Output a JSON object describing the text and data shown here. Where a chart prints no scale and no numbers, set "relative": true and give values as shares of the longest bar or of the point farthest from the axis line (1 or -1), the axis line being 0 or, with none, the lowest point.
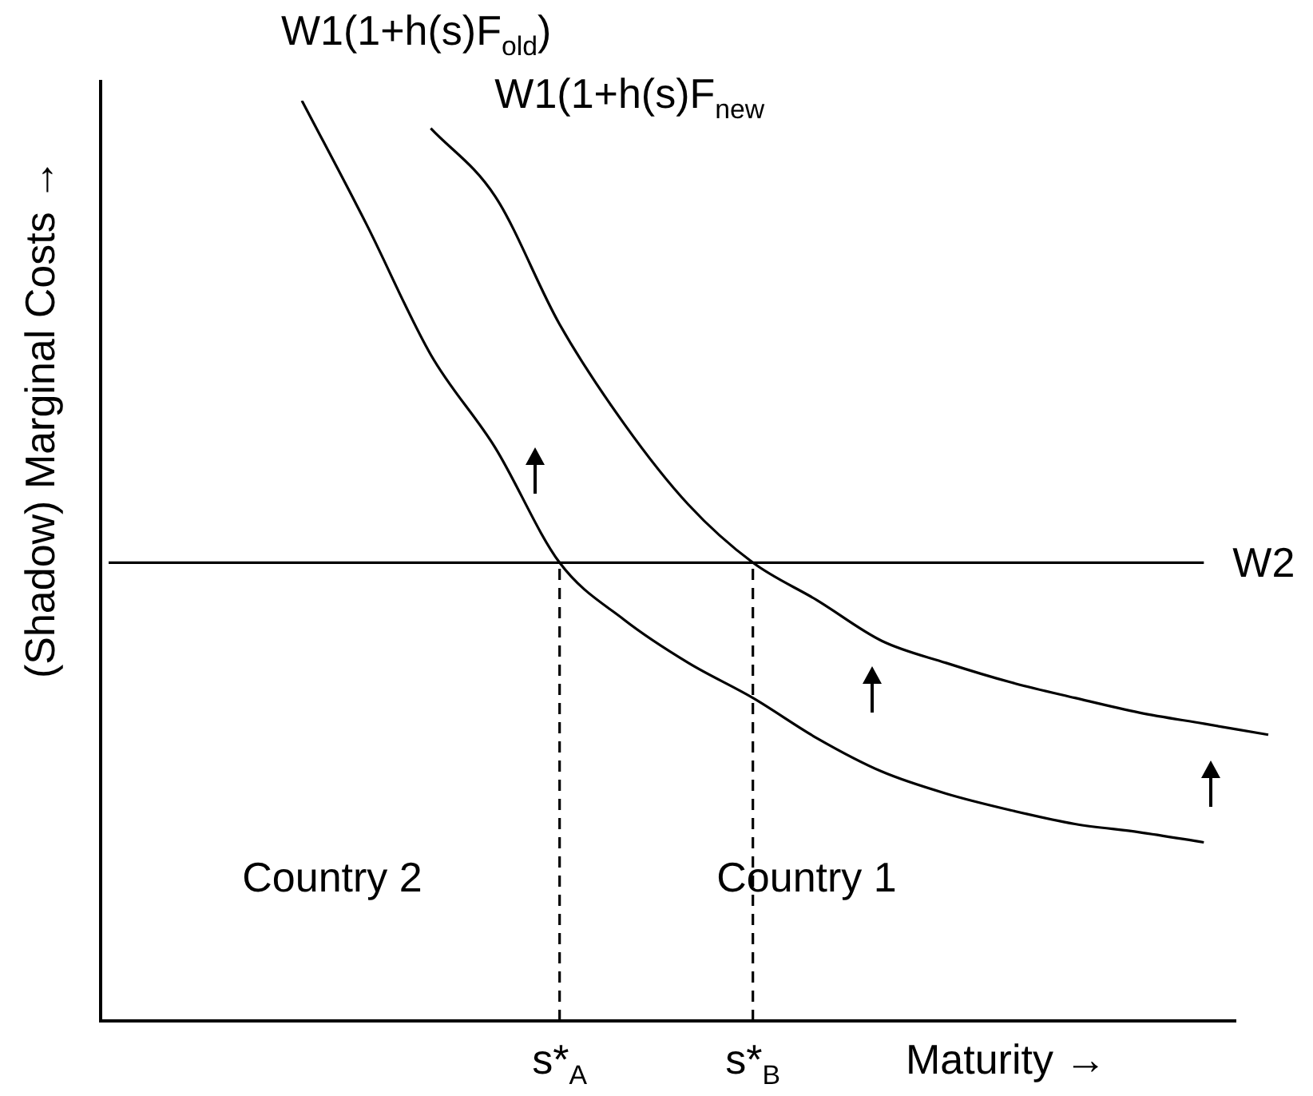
{
  "chart_data": {
    "type": "line",
    "relative": true,
    "xlabel": "Maturity →",
    "ylabel": "(Shadow) Marginal Costs →",
    "categories": [
      null,
      null,
      null,
      null,
      null,
      null,
      null,
      "s*$_{A}$",
      null,
      null,
      "s*$_{B}$",
      null,
      null,
      null,
      null,
      null,
      null,
      null,
      null
    ],
    "grid": false,
    "legend": false,
    "marker": "none",
    "series": [
      {
        "name": "W1(1+h(s)F$_{old}$)",
        "color": "#000000",
        "values": [
          null,
          null,
          null,
          1.0,
          0.866,
          0.724,
          0.623,
          0.498,
          0.436,
          0.389,
          0.351,
          0.307,
          0.271,
          0.247,
          0.229,
          0.214,
          0.205,
          0.194,
          null
        ]
      },
      {
        "name": "W1(1+h(s)F$_{new}$",
        "color": "#000000",
        "values": [
          null,
          null,
          null,
          null,
          null,
          0.97,
          0.896,
          0.757,
          0.649,
          0.561,
          0.498,
          0.457,
          0.413,
          0.389,
          0.368,
          0.351,
          0.335,
          0.323,
          0.311
        ]
      },
      {
        "name": "W2",
        "color": "#000000",
        "values": [
          0.498,
          0.498,
          0.498,
          0.498,
          0.498,
          0.498,
          0.498,
          0.498,
          0.498,
          0.498,
          0.498,
          0.498,
          0.498,
          0.498,
          0.498,
          0.498,
          0.498,
          0.498,
          null
        ]
      }
    ],
    "ref_lines": [
      {
        "axis": "x",
        "value": "s*$_{A}$",
        "line_style": "dashed"
      },
      {
        "axis": "x",
        "value": "s*$_{B}$",
        "line_style": "dashed"
      }
    ],
    "annotations": [
      "Country 2",
      "Country 1"
    ]
  }
}
